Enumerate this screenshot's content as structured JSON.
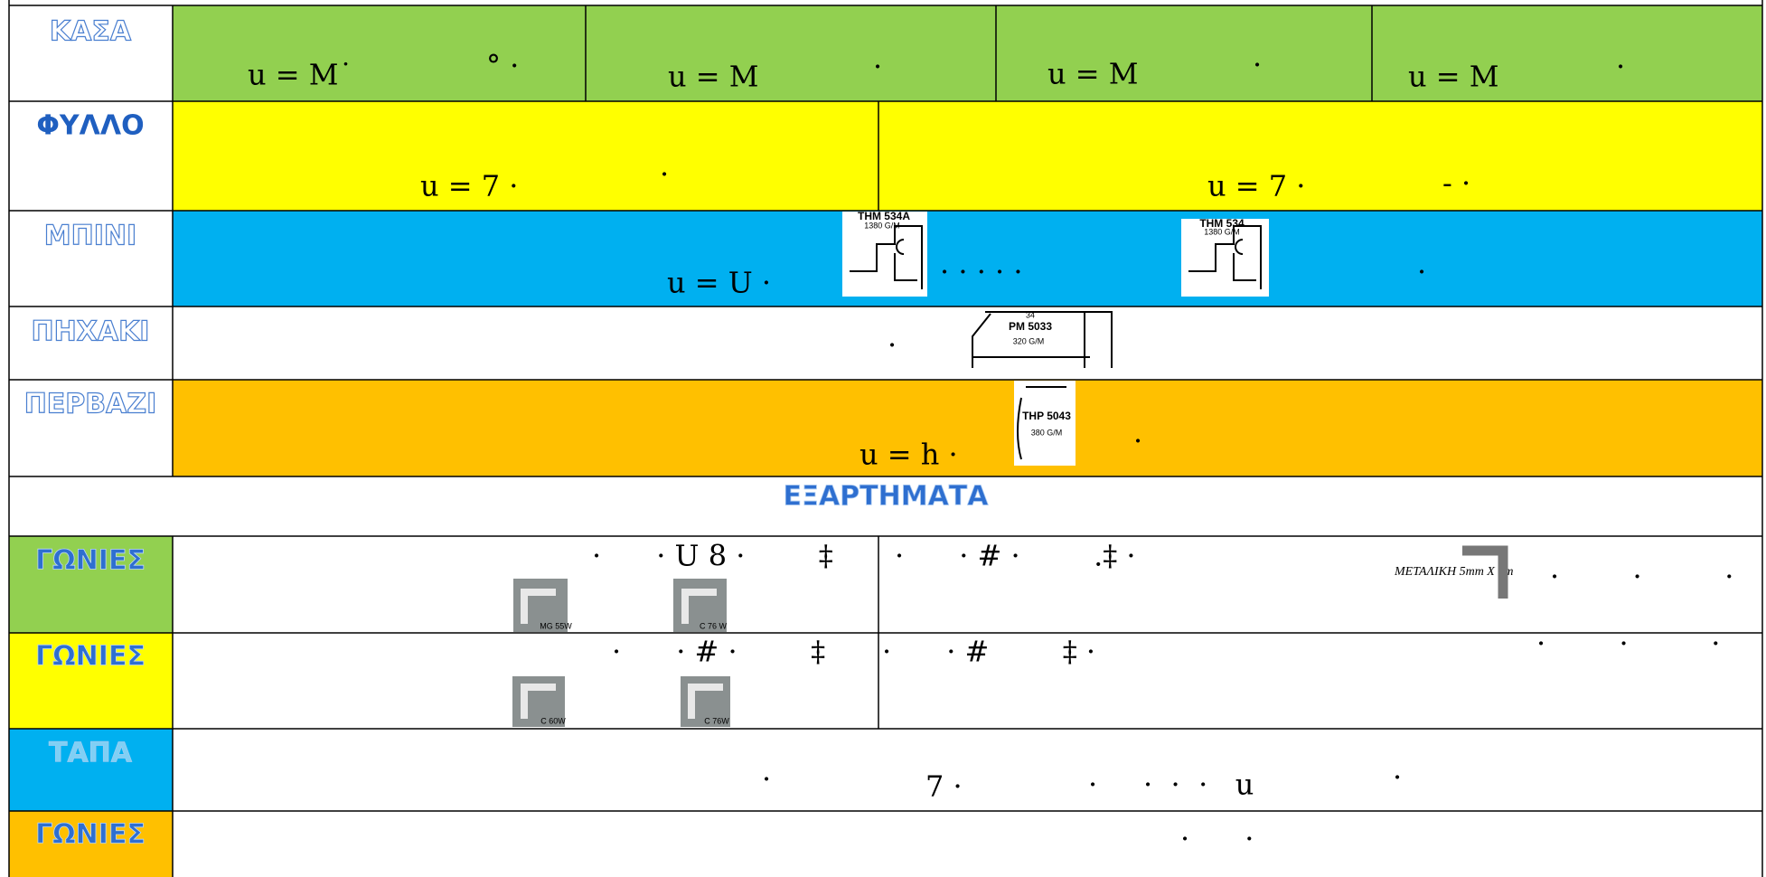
{
  "section_title": "ΕΞΑΡΤΗΜΑΤΑ",
  "rows": [
    {
      "label": "ΚΑΣΑ",
      "texts": [
        "u = M˙",
        "°  ·",
        "u = M",
        "·",
        "u = M",
        "·",
        "u = M",
        "·"
      ]
    },
    {
      "label": "ΦΥΛΛΟ",
      "texts": [
        "u = 7 ·",
        "·",
        "u = 7 ·",
        "-  ·"
      ]
    },
    {
      "label": "ΜΠΙΝΙ",
      "texts": [
        "u = U ·",
        "·   ·      ·    ·    ·",
        "·"
      ],
      "images": [
        [
          "THM 534A",
          "1380 G/M"
        ],
        [
          "THM 534",
          "1380 G/M"
        ]
      ]
    },
    {
      "label": "ΠΗΧΑΚΙ",
      "texts": [
        "·"
      ],
      "images": [
        [
          "34",
          "PM 5033",
          "320 G/M"
        ]
      ]
    },
    {
      "label": "ΠΕΡΒΑΖΙ",
      "texts": [
        "u = h ·",
        "·"
      ],
      "images": [
        [
          "THP 5043",
          "380 G/M"
        ]
      ]
    },
    {
      "label": "ΓΩΝΙΕΣ",
      "texts": [
        "·      · U 8 ·        ‡",
        "·      · # ·        .‡ ·",
        "ΜΕΤΑΛΙΚΗ 5mm X 1m",
        "·        ·         ·"
      ],
      "images": [
        [
          "MG 55W"
        ],
        [
          "C 76 W"
        ]
      ]
    },
    {
      "label": "ΓΩΝΙΕΣ",
      "texts": [
        "·      · # ·        ‡",
        "·      · #        ‡ ·",
        "·        ·         ·"
      ],
      "images": [
        [
          "C 60W"
        ],
        [
          "C 76W"
        ]
      ]
    },
    {
      "label": "ΤΑΠΑ",
      "texts": [
        "·",
        "7 ·",
        "·     ·  ·  ·   u",
        "·"
      ]
    },
    {
      "label": "ΓΩΝΙΕΣ",
      "texts": [
        "·      ·"
      ]
    }
  ]
}
